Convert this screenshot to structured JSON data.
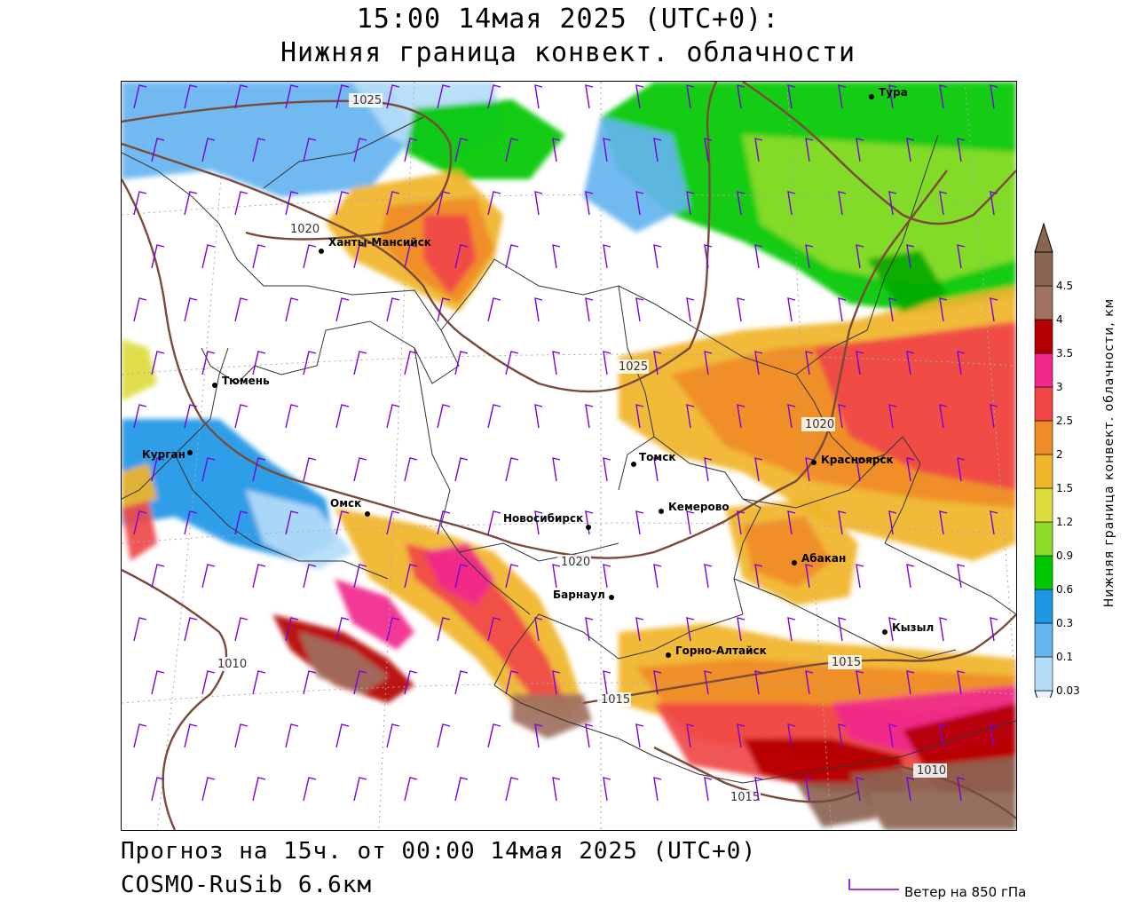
{
  "title": {
    "line1": "15:00 14мая 2025 (UTC+0):",
    "line2": "Нижняя граница конвект. облачности"
  },
  "footer": {
    "forecast": "Прогноз на 15ч. от 00:00 14мая 2025 (UTC+0)",
    "model": "COSMO-RuSib 6.6км"
  },
  "legend": {
    "title": "Нижняя граница конвект. облачности, км",
    "levels": [
      "0.03",
      "0.1",
      "0.3",
      "0.6",
      "0.9",
      "1.2",
      "1.5",
      "2",
      "2.5",
      "3",
      "3.5",
      "4",
      "4.5"
    ],
    "colors": [
      "#f0f0ff",
      "#b4dcf8",
      "#64b4f0",
      "#1e96e6",
      "#00c800",
      "#8cdc28",
      "#dcdc3c",
      "#f0b428",
      "#f08c28",
      "#f04646",
      "#f0288c",
      "#b40000",
      "#a07060",
      "#8c6452"
    ]
  },
  "wind_key": {
    "label": "Ветер на 850 гПа",
    "color": "#7a00e0"
  },
  "isobar_color": "#7a4a3a",
  "cities": [
    {
      "name": "Тура"
    },
    {
      "name": "Ханты-Мансийск"
    },
    {
      "name": "Тюмень"
    },
    {
      "name": "Курган"
    },
    {
      "name": "Омск"
    },
    {
      "name": "Томск"
    },
    {
      "name": "Красноярск"
    },
    {
      "name": "Кемерово"
    },
    {
      "name": "Новосибирск"
    },
    {
      "name": "Абакан"
    },
    {
      "name": "Барнаул"
    },
    {
      "name": "Кызыл"
    },
    {
      "name": "Горно-Алтайск"
    }
  ],
  "isobar_labels": [
    "1025",
    "1020",
    "1025",
    "1020",
    "1020",
    "1010",
    "1015",
    "1015",
    "1015",
    "1010"
  ]
}
